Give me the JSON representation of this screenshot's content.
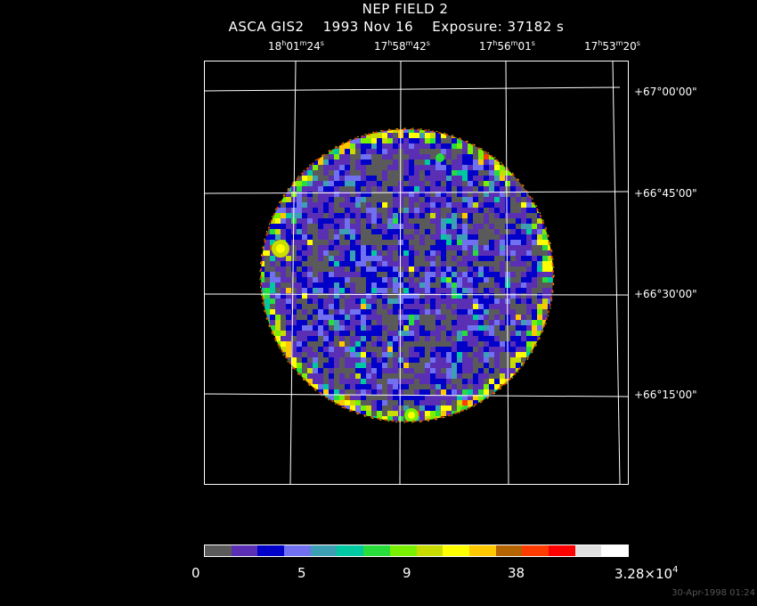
{
  "header": {
    "title": "NEP FIELD 2",
    "instrument": "ASCA GIS2",
    "date": "1993 Nov 16",
    "exposure": "Exposure: 37182 s"
  },
  "ra_labels": [
    {
      "h": "18",
      "m": "01",
      "s": "24"
    },
    {
      "h": "17",
      "m": "58",
      "s": "42"
    },
    {
      "h": "17",
      "m": "56",
      "s": "01"
    },
    {
      "h": "17",
      "m": "53",
      "s": "20"
    }
  ],
  "dec_labels": [
    "+67°00'00\"",
    "+66°45'00\"",
    "+66°30'00\"",
    "+66°15'00\""
  ],
  "colorbar": {
    "colors": [
      "#5a5a5a",
      "#5a2fb4",
      "#0000c8",
      "#7070f0",
      "#3c9fb4",
      "#00c8a0",
      "#28dc3c",
      "#78f000",
      "#c8dc00",
      "#ffff00",
      "#ffc800",
      "#b46400",
      "#ff3c00",
      "#ff0000",
      "#e0e0e0",
      "#ffffff"
    ],
    "labels": [
      "0",
      "5",
      "9",
      "38"
    ],
    "max_label": {
      "base": "3.28×10",
      "exp": "4"
    }
  },
  "timestamp": "30-Apr-1998 01:24"
}
